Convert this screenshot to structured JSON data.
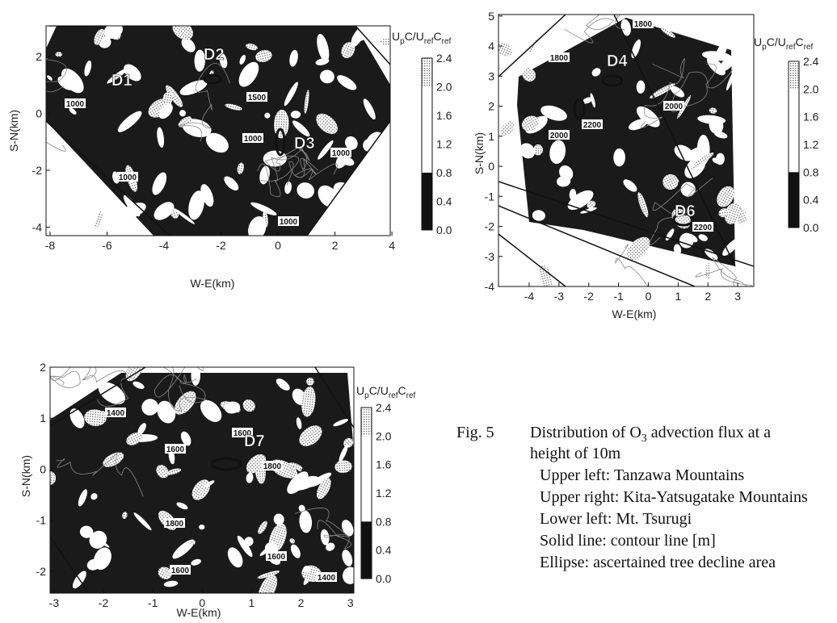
{
  "panels": [
    {
      "xticks": [
        "-8",
        "-6",
        "-4",
        "-2",
        "0",
        "2",
        "4"
      ],
      "yticks": [
        "2",
        "0",
        "-2",
        "-4"
      ],
      "xlabel": "W-E(km)",
      "ylabel": "S-N(km)",
      "colorbar_label": [
        "U",
        "p",
        "C/U",
        "ref",
        "C",
        "ref"
      ],
      "colorbar_ticks": [
        "2.4",
        "2.0",
        "1.6",
        "1.2",
        "0.8",
        "0.4",
        "0.0"
      ],
      "contour_labels": [
        "1000",
        "1500",
        "1000",
        "1000",
        "1000",
        "1000"
      ],
      "areas": [
        "D1",
        "D2",
        "D3"
      ]
    },
    {
      "xticks": [
        "-4",
        "-3",
        "-2",
        "-1",
        "0",
        "1",
        "2",
        "3"
      ],
      "yticks": [
        "5",
        "4",
        "3",
        "2",
        "1",
        "0",
        "-1",
        "-2",
        "-3",
        "-4"
      ],
      "xlabel": "W-E(km)",
      "ylabel": "S-N(km)",
      "colorbar_label": [
        "U",
        "p",
        "C/U",
        "ref",
        "C",
        "ref"
      ],
      "colorbar_ticks": [
        "2.4",
        "2.0",
        "1.6",
        "1.2",
        "0.8",
        "0.4",
        "0.0"
      ],
      "contour_labels": [
        "1800",
        "1800",
        "2200",
        "2000",
        "2000",
        "2200"
      ],
      "areas": [
        "D4",
        "D6"
      ]
    },
    {
      "xticks": [
        "-3",
        "-2",
        "-1",
        "0",
        "1",
        "2",
        "3"
      ],
      "yticks": [
        "2",
        "1",
        "0",
        "-1",
        "-2"
      ],
      "xlabel": "W-E(km)",
      "ylabel": "S-N(km)",
      "colorbar_label": [
        "U",
        "p",
        "C/U",
        "ref",
        "C",
        "ref"
      ],
      "colorbar_ticks": [
        "2.4",
        "2.0",
        "1.6",
        "1.2",
        "0.8",
        "0.4",
        "0.0"
      ],
      "contour_labels": [
        "1400",
        "1600",
        "1600",
        "1800",
        "1800",
        "1600",
        "1600",
        "1400"
      ],
      "areas": [
        "D7"
      ]
    }
  ],
  "caption": {
    "number": "Fig. 5",
    "title": [
      "Distribution of O",
      "3",
      " advection flux at a"
    ],
    "title_cont": "height of 10m",
    "lines": [
      "Upper left: Tanzawa Mountains",
      "Upper right: Kita-Yatsugatake Mountains",
      "Lower left: Mt. Tsurugi",
      "Solid line: contour line [m]",
      "Ellipse: ascertained tree decline area"
    ]
  }
}
